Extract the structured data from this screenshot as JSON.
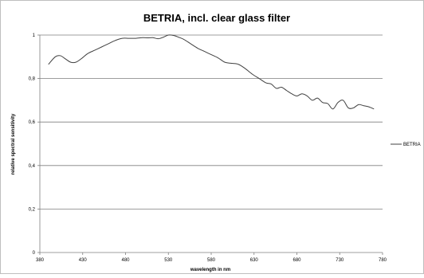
{
  "chart_data": {
    "type": "line",
    "title": "BETRIA, incl. clear glass filter",
    "xlabel": "wavelength in nm",
    "ylabel": "relative spectral sensitivity",
    "xlim": [
      380,
      780
    ],
    "ylim": [
      0,
      1
    ],
    "x_ticks": [
      380,
      430,
      480,
      530,
      580,
      630,
      680,
      730,
      780
    ],
    "y_ticks": [
      0,
      0.2,
      0.4,
      0.6,
      0.8,
      1
    ],
    "y_tick_labels": [
      "0",
      "0,2",
      "0,4",
      "0,6",
      "0,8",
      "1"
    ],
    "grid": "horizontal",
    "legend_position": "right",
    "series": [
      {
        "name": "BETRIA",
        "color": "#404040",
        "x": [
          390,
          398,
          404,
          410,
          416,
          422,
          428,
          436,
          444,
          452,
          460,
          468,
          476,
          484,
          492,
          500,
          506,
          512,
          518,
          524,
          530,
          536,
          542,
          548,
          556,
          564,
          572,
          580,
          588,
          596,
          604,
          612,
          620,
          628,
          636,
          644,
          650,
          656,
          662,
          668,
          674,
          680,
          686,
          692,
          698,
          704,
          710,
          716,
          722,
          728,
          734,
          740,
          746,
          752,
          758,
          764,
          770
        ],
        "y": [
          0.865,
          0.9,
          0.905,
          0.89,
          0.875,
          0.875,
          0.89,
          0.915,
          0.93,
          0.945,
          0.96,
          0.975,
          0.985,
          0.985,
          0.985,
          0.988,
          0.987,
          0.988,
          0.983,
          0.99,
          1.0,
          0.998,
          0.99,
          0.98,
          0.96,
          0.94,
          0.925,
          0.91,
          0.895,
          0.875,
          0.87,
          0.865,
          0.845,
          0.82,
          0.8,
          0.78,
          0.775,
          0.755,
          0.76,
          0.745,
          0.73,
          0.72,
          0.73,
          0.72,
          0.7,
          0.71,
          0.69,
          0.685,
          0.66,
          0.69,
          0.7,
          0.665,
          0.665,
          0.68,
          0.675,
          0.67,
          0.66
        ]
      }
    ]
  }
}
